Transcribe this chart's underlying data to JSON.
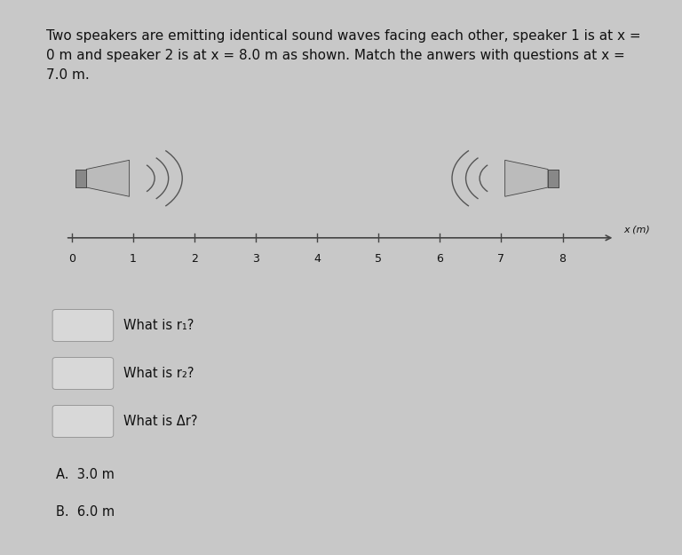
{
  "background_color": "#c8c8c8",
  "panel_color": "#e0e0e0",
  "title_text": "Two speakers are emitting identical sound waves facing each other, speaker 1 is at x =\n0 m and speaker 2 is at x = 8.0 m as shown. Match the anwers with questions at x =\n7.0 m.",
  "title_fontsize": 11.0,
  "axis_ticks": [
    0,
    1,
    2,
    3,
    4,
    5,
    6,
    7,
    8
  ],
  "axis_label": "x (m)",
  "questions": [
    "What is r₁?",
    "What is r₂?",
    "What is Δr?"
  ],
  "answers": [
    "A.  3.0 m",
    "B.  6.0 m"
  ],
  "text_color": "#111111",
  "line_color": "#444444",
  "speaker_gray": "#888888",
  "speaker_light": "#bbbbbb",
  "wave_color": "#555555"
}
